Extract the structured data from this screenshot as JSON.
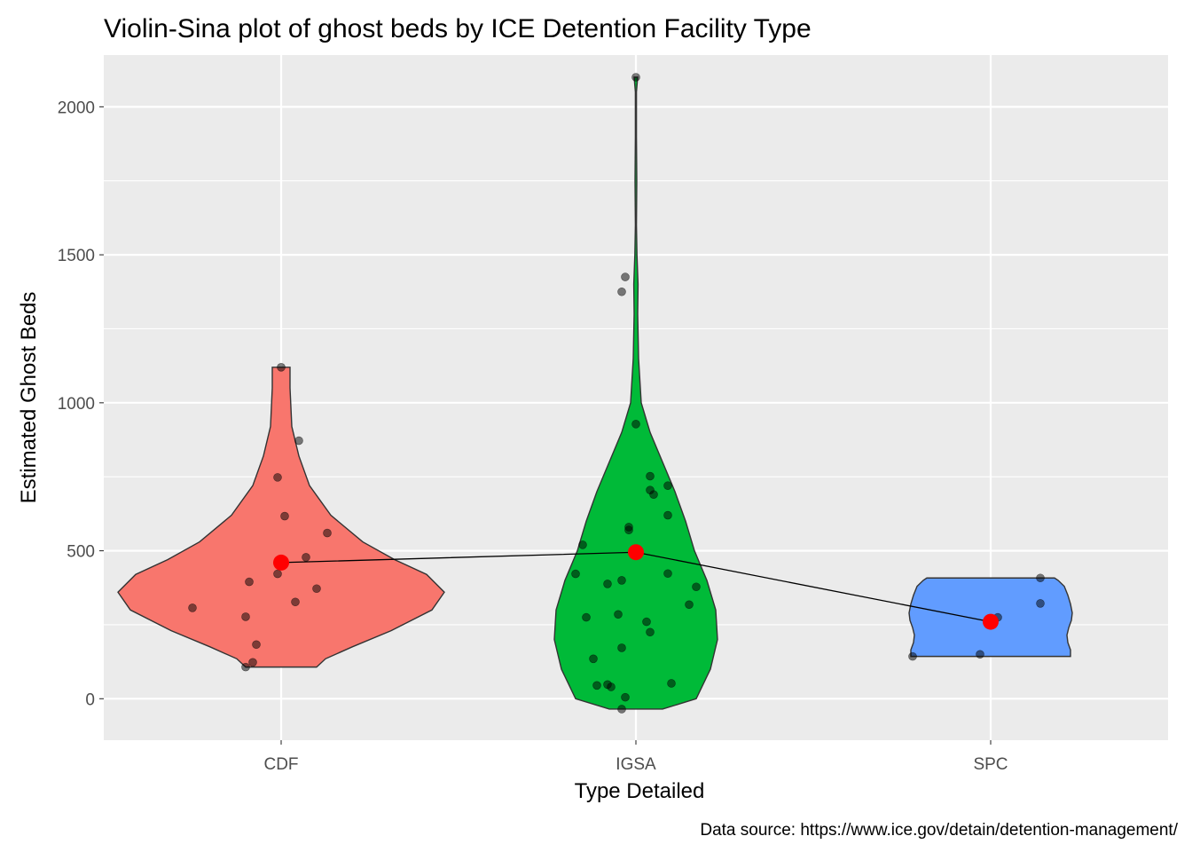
{
  "chart_data": {
    "type": "violin",
    "title": "Violin-Sina plot of ghost beds by ICE Detention Facility Type",
    "xlabel": "Type Detailed",
    "ylabel": "Estimated Ghost Beds",
    "caption": "Data source: https://www.ice.gov/detain/detention-management/",
    "categories": [
      "CDF",
      "IGSA",
      "SPC"
    ],
    "ylim": [
      -140,
      2175
    ],
    "yticks": [
      0,
      500,
      1000,
      1500,
      2000
    ],
    "grid": true,
    "colors": {
      "panel": "#ebebeb",
      "grid": "#ffffff",
      "CDF": "#f8766d",
      "IGSA": "#00ba38",
      "SPC": "#619cff",
      "mean_point": "#ff0000",
      "mean_line": "#000000",
      "violin_outline": "#333333"
    },
    "groups": [
      {
        "category": "CDF",
        "color": "#f8766d",
        "min": 107,
        "max": 1120,
        "mean": 460,
        "density": [
          [
            107,
            0.2
          ],
          [
            135,
            0.25
          ],
          [
            175,
            0.4
          ],
          [
            230,
            0.62
          ],
          [
            300,
            0.85
          ],
          [
            360,
            0.92
          ],
          [
            420,
            0.82
          ],
          [
            470,
            0.64
          ],
          [
            530,
            0.46
          ],
          [
            620,
            0.28
          ],
          [
            720,
            0.16
          ],
          [
            820,
            0.1
          ],
          [
            920,
            0.06
          ],
          [
            1050,
            0.05
          ],
          [
            1120,
            0.05
          ]
        ],
        "points": [
          [
            -0.25,
            307
          ],
          [
            -0.1,
            107
          ],
          [
            -0.1,
            277
          ],
          [
            -0.09,
            395
          ],
          [
            -0.08,
            123
          ],
          [
            -0.07,
            183
          ],
          [
            -0.01,
            748
          ],
          [
            -0.01,
            422
          ],
          [
            0.0,
            1120
          ],
          [
            0.01,
            617
          ],
          [
            0.07,
            478
          ],
          [
            0.04,
            327
          ],
          [
            0.05,
            872
          ],
          [
            0.1,
            372
          ],
          [
            0.13,
            560
          ]
        ]
      },
      {
        "category": "IGSA",
        "color": "#00ba38",
        "min": -35,
        "max": 2100,
        "mean": 495,
        "density": [
          [
            -35,
            0.15
          ],
          [
            0,
            0.34
          ],
          [
            100,
            0.42
          ],
          [
            200,
            0.46
          ],
          [
            300,
            0.45
          ],
          [
            400,
            0.4
          ],
          [
            500,
            0.33
          ],
          [
            600,
            0.28
          ],
          [
            700,
            0.22
          ],
          [
            800,
            0.15
          ],
          [
            900,
            0.08
          ],
          [
            1000,
            0.03
          ],
          [
            1150,
            0.015
          ],
          [
            1300,
            0.01
          ],
          [
            1400,
            0.012
          ],
          [
            1500,
            0.006
          ],
          [
            1600,
            0.003
          ],
          [
            1750,
            0.005
          ],
          [
            1900,
            0.003
          ],
          [
            2050,
            0.003
          ],
          [
            2100,
            0.01
          ]
        ],
        "points": [
          [
            -0.17,
            422
          ],
          [
            -0.15,
            520
          ],
          [
            -0.14,
            275
          ],
          [
            -0.12,
            135
          ],
          [
            -0.11,
            45
          ],
          [
            -0.08,
            388
          ],
          [
            -0.08,
            48
          ],
          [
            -0.07,
            40
          ],
          [
            -0.05,
            285
          ],
          [
            -0.04,
            172
          ],
          [
            -0.04,
            400
          ],
          [
            -0.04,
            1375
          ],
          [
            -0.03,
            1425
          ],
          [
            -0.04,
            -35
          ],
          [
            -0.03,
            5
          ],
          [
            -0.02,
            570
          ],
          [
            -0.02,
            580
          ],
          [
            0.0,
            2100
          ],
          [
            0.0,
            928
          ],
          [
            0.03,
            260
          ],
          [
            0.04,
            225
          ],
          [
            0.04,
            752
          ],
          [
            0.04,
            705
          ],
          [
            0.05,
            690
          ],
          [
            0.09,
            720
          ],
          [
            0.09,
            620
          ],
          [
            0.09,
            423
          ],
          [
            0.1,
            52
          ],
          [
            0.15,
            318
          ],
          [
            0.17,
            378
          ]
        ]
      },
      {
        "category": "SPC",
        "color": "#619cff",
        "min": 143,
        "max": 408,
        "mean": 260,
        "density": [
          [
            143,
            0.45
          ],
          [
            165,
            0.45
          ],
          [
            190,
            0.435
          ],
          [
            215,
            0.43
          ],
          [
            240,
            0.44
          ],
          [
            265,
            0.455
          ],
          [
            290,
            0.46
          ],
          [
            320,
            0.45
          ],
          [
            350,
            0.435
          ],
          [
            380,
            0.415
          ],
          [
            400,
            0.38
          ],
          [
            408,
            0.36
          ]
        ],
        "points": [
          [
            -0.22,
            143
          ],
          [
            -0.03,
            150
          ],
          [
            0.01,
            265
          ],
          [
            0.02,
            275
          ],
          [
            0.14,
            322
          ],
          [
            0.14,
            408
          ]
        ]
      }
    ]
  }
}
